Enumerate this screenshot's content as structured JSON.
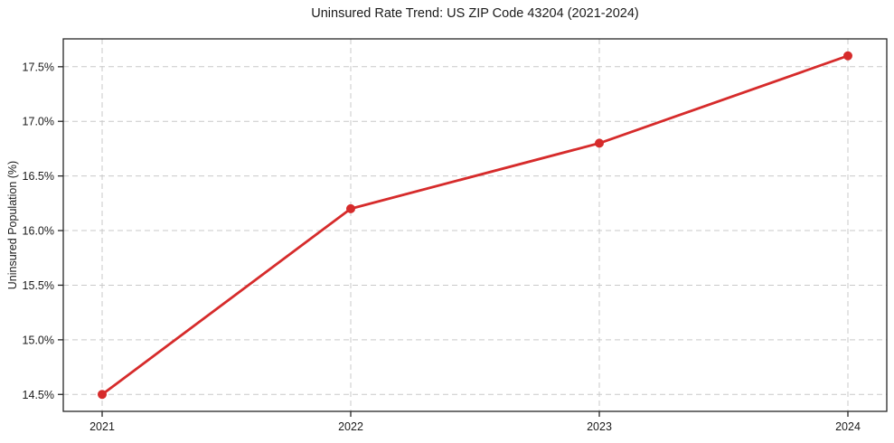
{
  "figure": {
    "background": "#ffffff",
    "text_color": "#1a1a1a",
    "spine_color": "#262626"
  },
  "chart_data": {
    "type": "line",
    "title": "Uninsured Rate Trend: US ZIP Code 43204 (2021-2024)",
    "xlabel": "",
    "ylabel": "Uninsured Population (%)",
    "categories": [
      "2021",
      "2022",
      "2023",
      "2024"
    ],
    "values": [
      14.5,
      16.2,
      16.8,
      17.6
    ],
    "y_ticks": [
      14.5,
      15.0,
      15.5,
      16.0,
      16.5,
      17.0,
      17.5
    ],
    "y_tick_labels": [
      "14.5%",
      "15.0%",
      "15.5%",
      "16.0%",
      "16.5%",
      "17.0%",
      "17.5%"
    ],
    "ylim": [
      14.345,
      17.755
    ],
    "grid": true,
    "grid_style": "dashed",
    "legend_position": "none",
    "line_color": "#d62b2b",
    "grid_color": "#c9c9c9",
    "marker": "circle"
  }
}
